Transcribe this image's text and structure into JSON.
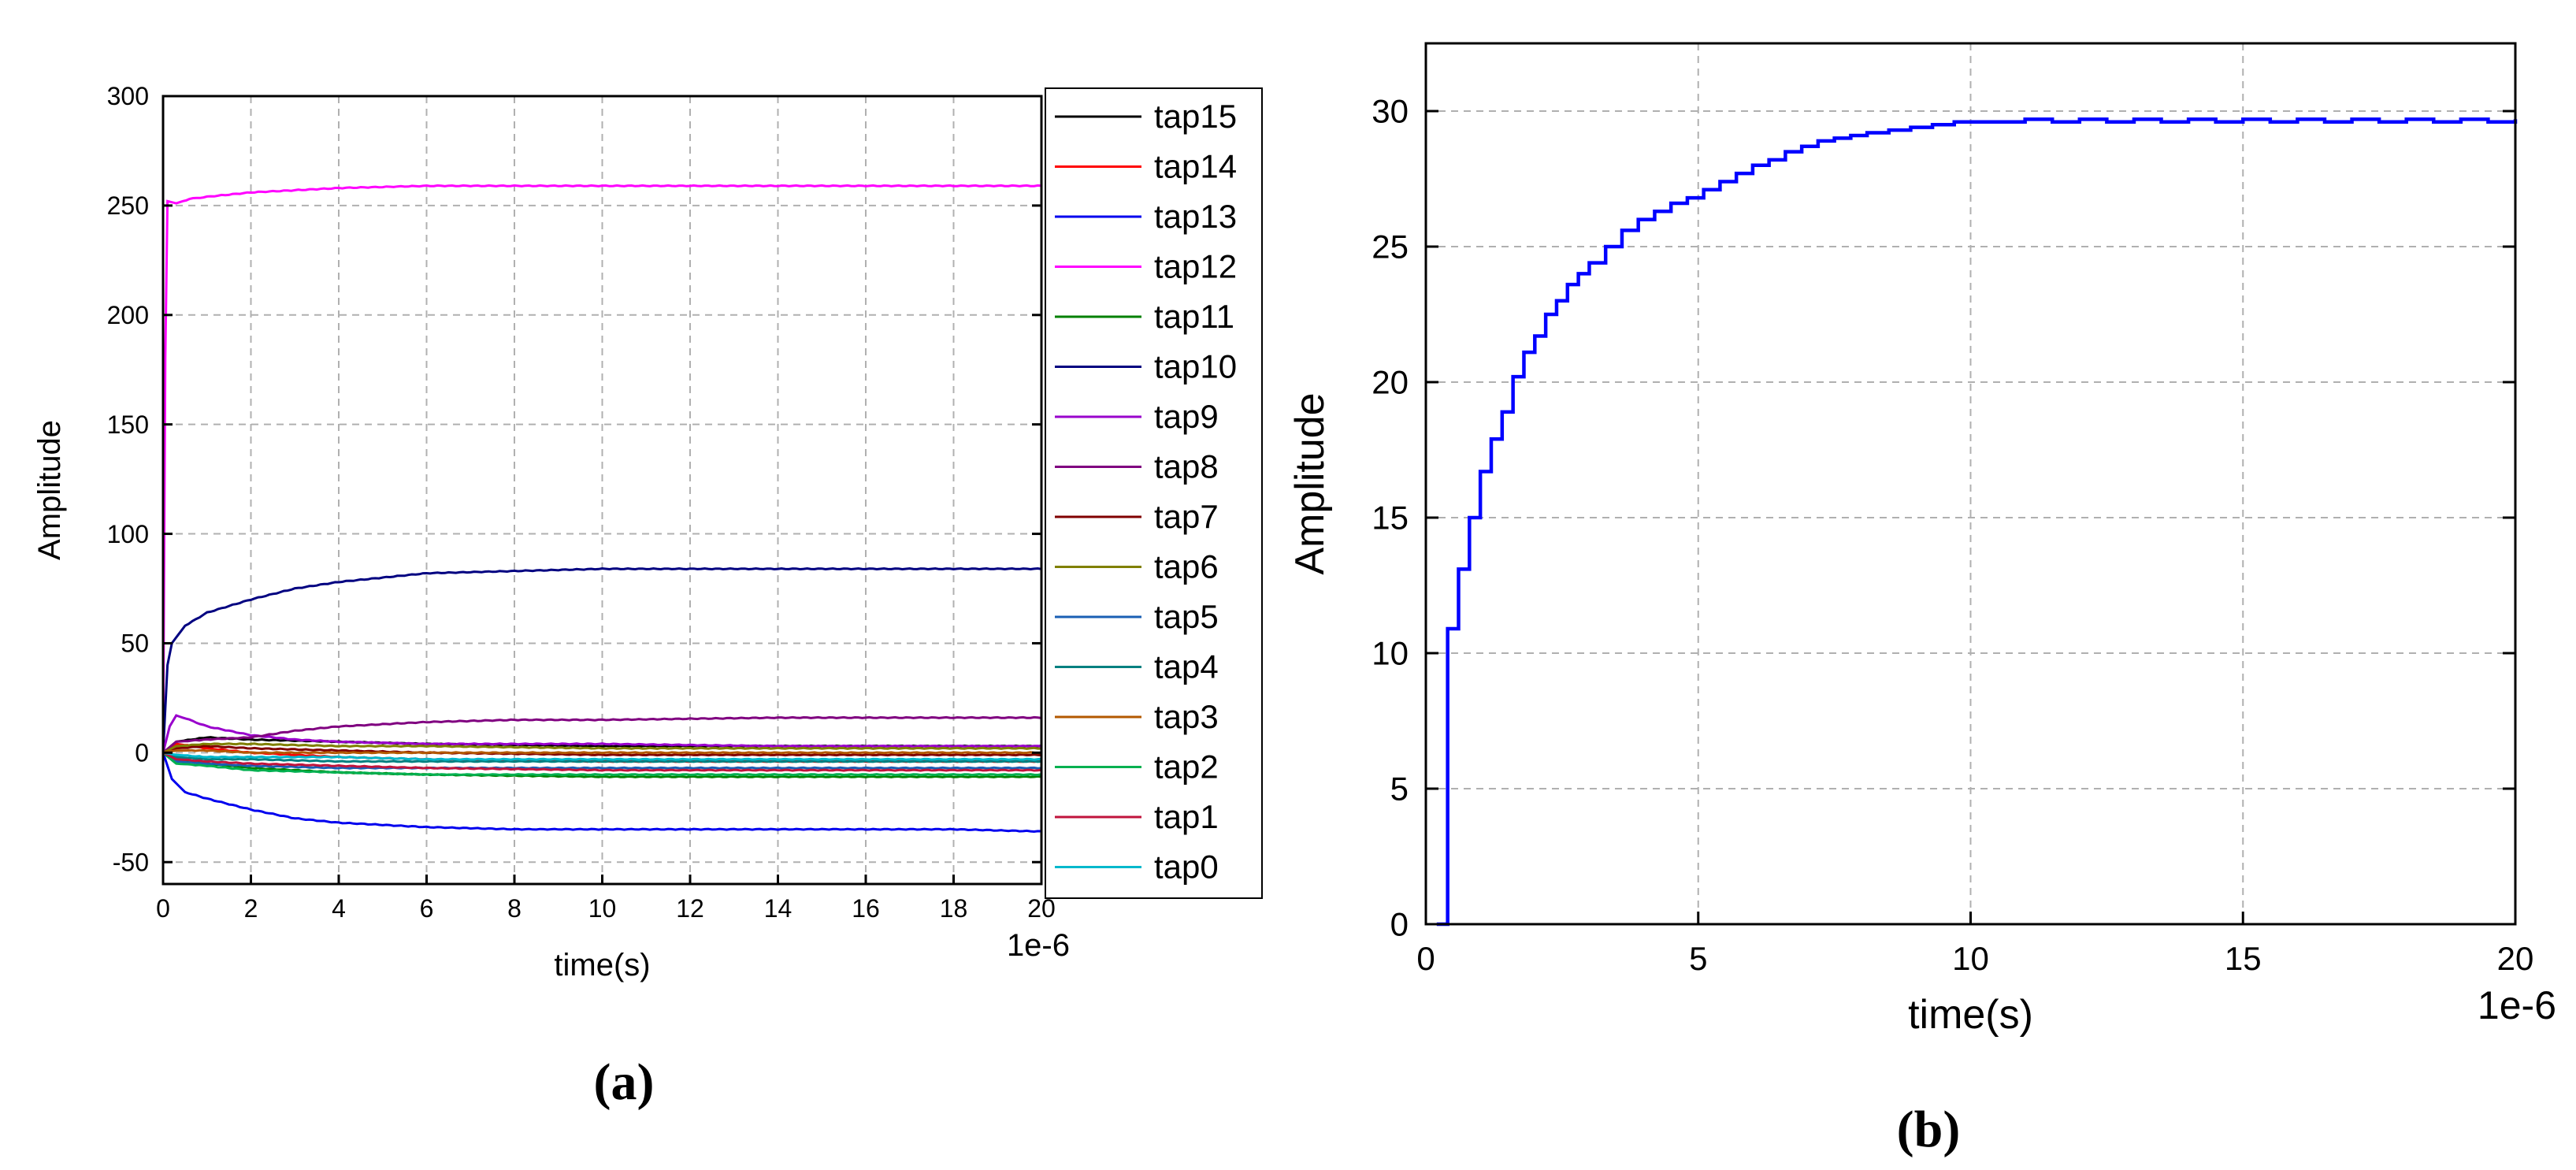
{
  "chart_data": [
    {
      "type": "line",
      "panel": "a",
      "caption": "(a)",
      "xlabel": "time(s)",
      "ylabel": "Amplitude",
      "x_scale_label": "1e-6",
      "xlim": [
        0,
        20
      ],
      "ylim": [
        -60,
        300
      ],
      "xticks": [
        0,
        2,
        4,
        6,
        8,
        10,
        12,
        14,
        16,
        18,
        20
      ],
      "yticks": [
        -50,
        0,
        50,
        100,
        150,
        200,
        250,
        300
      ],
      "grid": true,
      "legend_position": "right-outside",
      "series": [
        {
          "name": "tap15",
          "color": "#000000",
          "points": [
            [
              0,
              0
            ],
            [
              0.3,
              5
            ],
            [
              1,
              7
            ],
            [
              2,
              6
            ],
            [
              4,
              5
            ],
            [
              6,
              4
            ],
            [
              10,
              3
            ],
            [
              14,
              3
            ],
            [
              20,
              3
            ]
          ]
        },
        {
          "name": "tap14",
          "color": "#ff0000",
          "points": [
            [
              0,
              0
            ],
            [
              0.3,
              4
            ],
            [
              1,
              2
            ],
            [
              2,
              0
            ],
            [
              4,
              -2
            ],
            [
              6,
              -3
            ],
            [
              10,
              -4
            ],
            [
              14,
              -4
            ],
            [
              20,
              -4
            ]
          ]
        },
        {
          "name": "tap13",
          "color": "#0000ee",
          "points": [
            [
              0,
              0
            ],
            [
              0.2,
              -12
            ],
            [
              0.5,
              -18
            ],
            [
              1,
              -21
            ],
            [
              2,
              -26
            ],
            [
              3,
              -30
            ],
            [
              4,
              -32
            ],
            [
              6,
              -34
            ],
            [
              8,
              -35
            ],
            [
              10,
              -35
            ],
            [
              12,
              -35
            ],
            [
              14,
              -35
            ],
            [
              16,
              -35
            ],
            [
              18,
              -35
            ],
            [
              20,
              -36
            ]
          ]
        },
        {
          "name": "tap12",
          "color": "#ff00ff",
          "points": [
            [
              0,
              0
            ],
            [
              0.05,
              180
            ],
            [
              0.1,
              252
            ],
            [
              0.3,
              251
            ],
            [
              0.6,
              253
            ],
            [
              1,
              254
            ],
            [
              2,
              256
            ],
            [
              3,
              257
            ],
            [
              4,
              258
            ],
            [
              6,
              259
            ],
            [
              8,
              259
            ],
            [
              10,
              259
            ],
            [
              14,
              259
            ],
            [
              20,
              259
            ]
          ]
        },
        {
          "name": "tap11",
          "color": "#008000",
          "points": [
            [
              0,
              0
            ],
            [
              0.3,
              -3
            ],
            [
              1,
              -5
            ],
            [
              2,
              -7
            ],
            [
              4,
              -9
            ],
            [
              6,
              -10
            ],
            [
              10,
              -11
            ],
            [
              14,
              -11
            ],
            [
              20,
              -11
            ]
          ]
        },
        {
          "name": "tap10",
          "color": "#000080",
          "points": [
            [
              0,
              0
            ],
            [
              0.1,
              40
            ],
            [
              0.2,
              50
            ],
            [
              0.5,
              58
            ],
            [
              1,
              64
            ],
            [
              2,
              70
            ],
            [
              3,
              75
            ],
            [
              4,
              78
            ],
            [
              5,
              80
            ],
            [
              6,
              82
            ],
            [
              8,
              83
            ],
            [
              10,
              84
            ],
            [
              12,
              84
            ],
            [
              14,
              84
            ],
            [
              16,
              84
            ],
            [
              18,
              84
            ],
            [
              20,
              84
            ]
          ]
        },
        {
          "name": "tap9",
          "color": "#9900cc",
          "points": [
            [
              0,
              0
            ],
            [
              0.15,
              12
            ],
            [
              0.3,
              17
            ],
            [
              0.6,
              15
            ],
            [
              1,
              12
            ],
            [
              2,
              8
            ],
            [
              3,
              6
            ],
            [
              4,
              5
            ],
            [
              6,
              4
            ],
            [
              10,
              4
            ],
            [
              14,
              3
            ],
            [
              20,
              3
            ]
          ]
        },
        {
          "name": "tap8",
          "color": "#800080",
          "points": [
            [
              0,
              0
            ],
            [
              0.3,
              5
            ],
            [
              1,
              6
            ],
            [
              2,
              7
            ],
            [
              3,
              10
            ],
            [
              4,
              12
            ],
            [
              6,
              14
            ],
            [
              8,
              15
            ],
            [
              10,
              15
            ],
            [
              14,
              16
            ],
            [
              20,
              16
            ]
          ]
        },
        {
          "name": "tap7",
          "color": "#800000",
          "points": [
            [
              0,
              0
            ],
            [
              0.3,
              2
            ],
            [
              1,
              3
            ],
            [
              2,
              2
            ],
            [
              4,
              1
            ],
            [
              6,
              0
            ],
            [
              10,
              -1
            ],
            [
              14,
              -1
            ],
            [
              20,
              -1
            ]
          ]
        },
        {
          "name": "tap6",
          "color": "#808000",
          "points": [
            [
              0,
              0
            ],
            [
              0.3,
              3
            ],
            [
              1,
              4
            ],
            [
              2,
              4
            ],
            [
              4,
              3
            ],
            [
              6,
              3
            ],
            [
              10,
              2
            ],
            [
              14,
              2
            ],
            [
              20,
              2
            ]
          ]
        },
        {
          "name": "tap5",
          "color": "#1a5fb4",
          "points": [
            [
              0,
              0
            ],
            [
              0.3,
              -4
            ],
            [
              1,
              -5
            ],
            [
              2,
              -6
            ],
            [
              4,
              -7
            ],
            [
              6,
              -7
            ],
            [
              10,
              -7
            ],
            [
              14,
              -7
            ],
            [
              20,
              -7
            ]
          ]
        },
        {
          "name": "tap4",
          "color": "#008080",
          "points": [
            [
              0,
              0
            ],
            [
              0.3,
              -2
            ],
            [
              1,
              -3
            ],
            [
              2,
              -3
            ],
            [
              4,
              -4
            ],
            [
              6,
              -4
            ],
            [
              10,
              -4
            ],
            [
              14,
              -4
            ],
            [
              20,
              -4
            ]
          ]
        },
        {
          "name": "tap3",
          "color": "#b35900",
          "points": [
            [
              0,
              0
            ],
            [
              0.3,
              1
            ],
            [
              1,
              1
            ],
            [
              2,
              0
            ],
            [
              4,
              0
            ],
            [
              6,
              0
            ],
            [
              10,
              0
            ],
            [
              14,
              0
            ],
            [
              20,
              0
            ]
          ]
        },
        {
          "name": "tap2",
          "color": "#00b050",
          "points": [
            [
              0,
              0
            ],
            [
              0.3,
              -5
            ],
            [
              1,
              -6
            ],
            [
              2,
              -8
            ],
            [
              4,
              -9
            ],
            [
              6,
              -10
            ],
            [
              10,
              -10
            ],
            [
              14,
              -10
            ],
            [
              20,
              -10
            ]
          ]
        },
        {
          "name": "tap1",
          "color": "#c0143c",
          "points": [
            [
              0,
              0
            ],
            [
              0.3,
              -3
            ],
            [
              1,
              -4
            ],
            [
              2,
              -5
            ],
            [
              4,
              -6
            ],
            [
              6,
              -7
            ],
            [
              10,
              -8
            ],
            [
              14,
              -8
            ],
            [
              20,
              -8
            ]
          ]
        },
        {
          "name": "tap0",
          "color": "#00b8cc",
          "points": [
            [
              0,
              0
            ],
            [
              0.3,
              -1
            ],
            [
              1,
              -2
            ],
            [
              2,
              -2
            ],
            [
              4,
              -2
            ],
            [
              6,
              -3
            ],
            [
              10,
              -3
            ],
            [
              14,
              -3
            ],
            [
              20,
              -3
            ]
          ]
        }
      ]
    },
    {
      "type": "line",
      "panel": "b",
      "caption": "(b)",
      "xlabel": "time(s)",
      "ylabel": "Amplitude",
      "x_scale_label": "1e-6",
      "xlim": [
        0,
        20
      ],
      "ylim": [
        0,
        32.5
      ],
      "xticks": [
        0,
        5,
        10,
        15,
        20
      ],
      "yticks": [
        0,
        5,
        10,
        15,
        20,
        25,
        30
      ],
      "grid": true,
      "step": true,
      "series": [
        {
          "color": "#0000ff",
          "x": [
            0.2,
            0.4,
            0.6,
            0.8,
            1.0,
            1.2,
            1.4,
            1.6,
            1.8,
            2.0,
            2.2,
            2.4,
            2.6,
            2.8,
            3.0,
            3.3,
            3.6,
            3.9,
            4.2,
            4.5,
            4.8,
            5.1,
            5.4,
            5.7,
            6.0,
            6.3,
            6.6,
            6.9,
            7.2,
            7.5,
            7.8,
            8.1,
            8.5,
            8.9,
            9.3,
            9.7,
            10.0,
            10.5,
            11.0,
            11.5,
            12.0,
            12.5,
            13.0,
            13.5,
            14.0,
            14.5,
            15.0,
            15.5,
            16.0,
            16.5,
            17.0,
            17.5,
            18.0,
            18.5,
            19.0,
            19.5,
            20.0
          ],
          "y": [
            0,
            10.9,
            13.1,
            15.0,
            16.7,
            17.9,
            18.9,
            20.2,
            21.1,
            21.7,
            22.5,
            23.0,
            23.6,
            24.0,
            24.4,
            25.0,
            25.6,
            26.0,
            26.3,
            26.6,
            26.8,
            27.1,
            27.4,
            27.7,
            28.0,
            28.2,
            28.5,
            28.7,
            28.9,
            29.0,
            29.1,
            29.2,
            29.3,
            29.4,
            29.5,
            29.6,
            29.6,
            29.6,
            29.7,
            29.6,
            29.7,
            29.6,
            29.7,
            29.6,
            29.7,
            29.6,
            29.7,
            29.6,
            29.7,
            29.6,
            29.7,
            29.6,
            29.7,
            29.6,
            29.7,
            29.6,
            29.7
          ]
        }
      ]
    }
  ]
}
